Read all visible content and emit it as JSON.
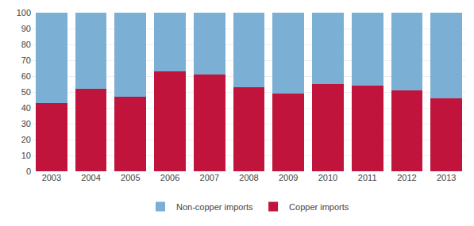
{
  "chart_data": {
    "type": "bar",
    "stacked": true,
    "categories": [
      "2003",
      "2004",
      "2005",
      "2006",
      "2007",
      "2008",
      "2009",
      "2010",
      "2011",
      "2012",
      "2013"
    ],
    "series": [
      {
        "name": "Copper imports",
        "color": "#c0143c",
        "values": [
          43,
          52,
          47,
          63,
          61,
          53,
          49,
          55,
          54,
          51,
          46
        ]
      },
      {
        "name": "Non-copper imports",
        "color": "#7bafd4",
        "values": [
          57,
          48,
          53,
          37,
          39,
          47,
          51,
          45,
          46,
          49,
          54
        ]
      }
    ],
    "ylim": [
      0,
      100
    ],
    "yticks": [
      0,
      10,
      20,
      30,
      40,
      50,
      60,
      70,
      80,
      90,
      100
    ],
    "grid": true,
    "legend": "bottom"
  }
}
